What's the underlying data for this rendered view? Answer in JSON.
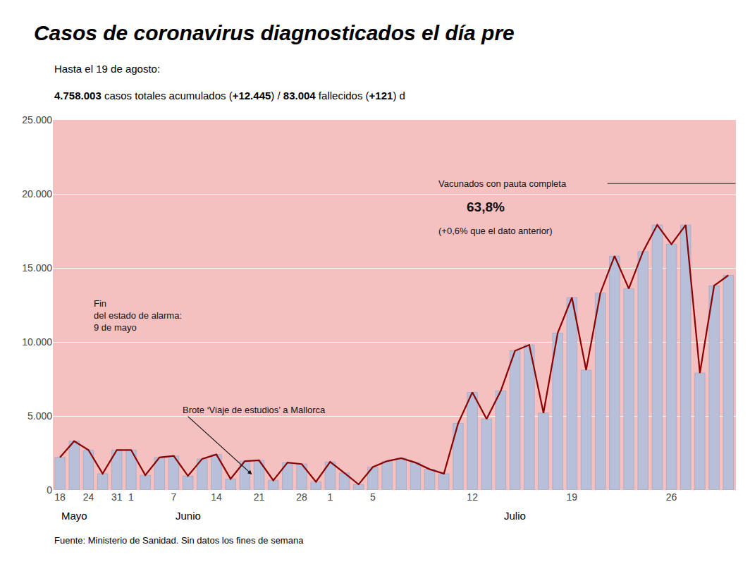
{
  "chart_data": {
    "type": "bar",
    "title": "Casos de coronavirus diagnosticados el día pre",
    "subtitle": "Hasta el 19 de agosto:",
    "subtitle2": [
      {
        "text": "4.758.003",
        "bold": true
      },
      {
        "text": " casos totales acumulados (",
        "bold": false
      },
      {
        "text": "+12.445",
        "bold": true
      },
      {
        "text": ") / ",
        "bold": false
      },
      {
        "text": "83.004",
        "bold": true
      },
      {
        "text": " fallecidos (",
        "bold": false
      },
      {
        "text": "+121",
        "bold": true
      },
      {
        "text": ") d",
        "bold": false
      }
    ],
    "source": "Fuente: Ministerio de Sanidad. Sin datos los fines de semana",
    "categories": [
      "18",
      null,
      "24",
      null,
      "31",
      "1",
      null,
      null,
      "7",
      null,
      null,
      "14",
      null,
      null,
      "21",
      null,
      null,
      "28",
      null,
      "1",
      null,
      null,
      "5",
      null,
      null,
      null,
      null,
      null,
      null,
      "12",
      null,
      null,
      null,
      null,
      null,
      null,
      "19",
      null,
      null,
      null,
      null,
      null,
      null,
      "26",
      null,
      null,
      null,
      null
    ],
    "month_labels": [
      "Mayo",
      "Junio",
      "Julio"
    ],
    "series": [
      {
        "type": "bar",
        "color": "#b8bfd8",
        "values": [
          2200,
          3300,
          2700,
          1100,
          2700,
          2700,
          1000,
          2200,
          2300,
          950,
          2100,
          2400,
          750,
          1950,
          2000,
          650,
          1850,
          1750,
          550,
          1900,
          1150,
          380,
          1550,
          1950,
          2150,
          1850,
          1400,
          1100,
          4500,
          6600,
          4800,
          6700,
          9400,
          9800,
          5200,
          10600,
          13000,
          8100,
          13300,
          15800,
          13600,
          16100,
          17900,
          16600,
          17900,
          7900,
          13800,
          14500
        ]
      },
      {
        "type": "line",
        "color": "#8b0000",
        "values": [
          2200,
          3300,
          2700,
          1100,
          2700,
          2700,
          1000,
          2200,
          2300,
          950,
          2100,
          2400,
          750,
          1950,
          2000,
          650,
          1850,
          1750,
          550,
          1900,
          1150,
          380,
          1550,
          1950,
          2150,
          1850,
          1400,
          1100,
          4500,
          6600,
          4800,
          6700,
          9400,
          9800,
          5200,
          10600,
          13000,
          8100,
          13300,
          15800,
          13600,
          16100,
          17900,
          16600,
          17900,
          7900,
          13800,
          14500
        ]
      }
    ],
    "ylim": [
      0,
      25000
    ],
    "yticks": [
      0,
      {
        "value": 5000,
        "label": "5.000"
      },
      {
        "value": 10000,
        "label": "10.000"
      },
      {
        "value": 15000,
        "label": "15.000"
      },
      {
        "value": 20000,
        "label": "20.000"
      },
      {
        "value": 25000,
        "label": "25.000"
      }
    ],
    "grid": true,
    "annotations": [
      "Fin\ndel estado de alarma:\n9 de mayo",
      "Brote ‘Viaje de estudios’ a Mallorca",
      "Vacunados con pauta completa",
      "63,8%",
      "(+0,6% que el dato anterior)"
    ]
  }
}
